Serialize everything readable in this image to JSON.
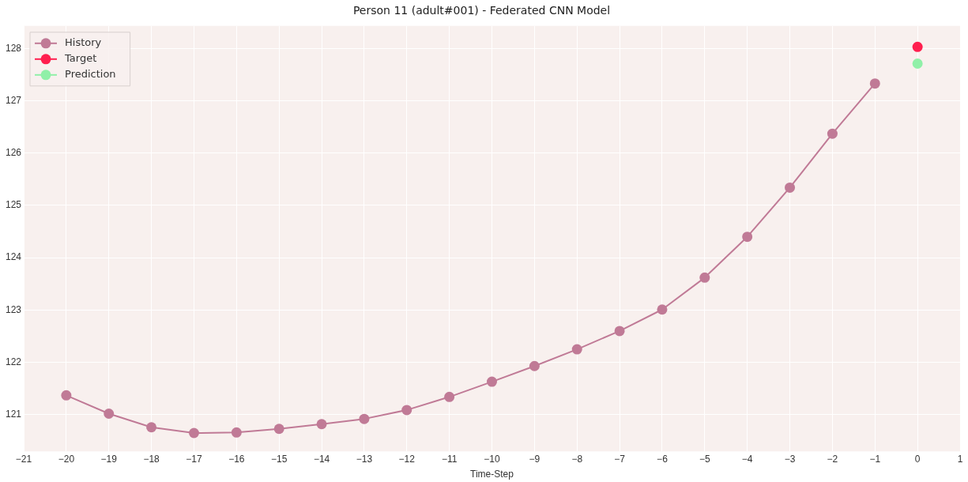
{
  "chart_data": {
    "type": "line",
    "title": "Person 11 (adult#001) - Federated CNN Model",
    "xlabel": "Time-Step",
    "series": [
      {
        "name": "History",
        "color": "#c07a96",
        "x": [
          -20,
          -19,
          -18,
          -17,
          -16,
          -15,
          -14,
          -13,
          -12,
          -11,
          -10,
          -9,
          -8,
          -7,
          -6,
          -5,
          -4,
          -3,
          -2,
          -1
        ],
        "values": [
          121.37,
          121.02,
          120.76,
          120.65,
          120.66,
          120.73,
          120.82,
          120.92,
          121.09,
          121.34,
          121.63,
          121.93,
          122.25,
          122.6,
          123.01,
          123.62,
          124.4,
          125.34,
          126.37,
          127.33
        ]
      },
      {
        "name": "Target",
        "type": "scatter",
        "color": "#ff1f4f",
        "x": [
          0
        ],
        "values": [
          128.03
        ]
      },
      {
        "name": "Prediction",
        "type": "scatter",
        "color": "#90f0a8",
        "x": [
          0
        ],
        "values": [
          127.71
        ]
      }
    ],
    "xlim": [
      -21,
      1
    ],
    "xticks": [
      {
        "value": -21,
        "label": "−21"
      },
      {
        "value": -20,
        "label": "−20"
      },
      {
        "value": -19,
        "label": "−19"
      },
      {
        "value": -18,
        "label": "−18"
      },
      {
        "value": -17,
        "label": "−17"
      },
      {
        "value": -16,
        "label": "−16"
      },
      {
        "value": -15,
        "label": "−15"
      },
      {
        "value": -14,
        "label": "−14"
      },
      {
        "value": -13,
        "label": "−13"
      },
      {
        "value": -12,
        "label": "−12"
      },
      {
        "value": -11,
        "label": "−11"
      },
      {
        "value": -10,
        "label": "−10"
      },
      {
        "value": -9,
        "label": "−9"
      },
      {
        "value": -8,
        "label": "−8"
      },
      {
        "value": -7,
        "label": "−7"
      },
      {
        "value": -6,
        "label": "−6"
      },
      {
        "value": -5,
        "label": "−5"
      },
      {
        "value": -4,
        "label": "−4"
      },
      {
        "value": -3,
        "label": "−3"
      },
      {
        "value": -2,
        "label": "−2"
      },
      {
        "value": -1,
        "label": "−1"
      },
      0,
      1
    ],
    "ylim": [
      120.3,
      128.43
    ],
    "yticks": [
      121,
      122,
      123,
      124,
      125,
      126,
      127,
      128
    ],
    "grid": true,
    "legend": "top left",
    "marker": "circle",
    "line_style": "solid"
  }
}
